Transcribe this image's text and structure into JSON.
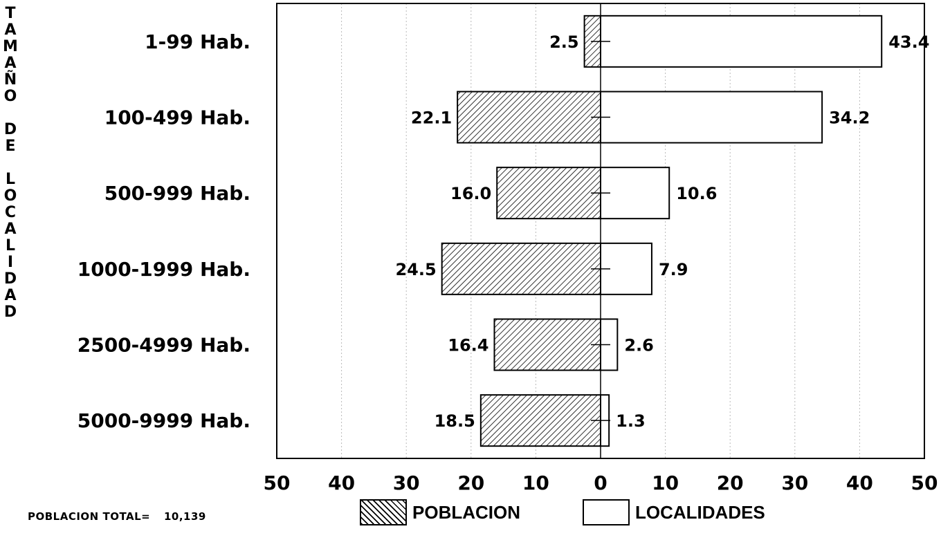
{
  "chart_data": {
    "type": "bar",
    "orientation": "horizontal-pyramid",
    "categories": [
      "1-99 Hab.",
      "100-499 Hab.",
      "500-999 Hab.",
      "1000-1999 Hab.",
      "2500-4999 Hab.",
      "5000-9999 Hab."
    ],
    "series": [
      {
        "name": "POBLACION",
        "side": "left",
        "pattern": "hatched",
        "values": [
          2.5,
          22.1,
          16.0,
          24.5,
          16.4,
          18.5
        ]
      },
      {
        "name": "LOCALIDADES",
        "side": "right",
        "pattern": "white",
        "values": [
          43.4,
          34.2,
          10.6,
          7.9,
          2.6,
          1.3
        ]
      }
    ],
    "ylabel": "TAMAÑO DE LOCALIDAD",
    "xlim": [
      -50,
      50
    ],
    "x_tick_labels": [
      "50",
      "40",
      "30",
      "20",
      "10",
      "0",
      "10",
      "20",
      "30",
      "40",
      "50"
    ],
    "grid": true,
    "legend": "bottom"
  },
  "ylabel_letters": [
    "T",
    "A",
    "M",
    "A",
    "Ñ",
    "O",
    "",
    "D",
    "E",
    "",
    "L",
    "O",
    "C",
    "A",
    "L",
    "I",
    "D",
    "A",
    "D"
  ],
  "total": {
    "label": "POBLACION TOTAL=",
    "value": "10,139"
  }
}
